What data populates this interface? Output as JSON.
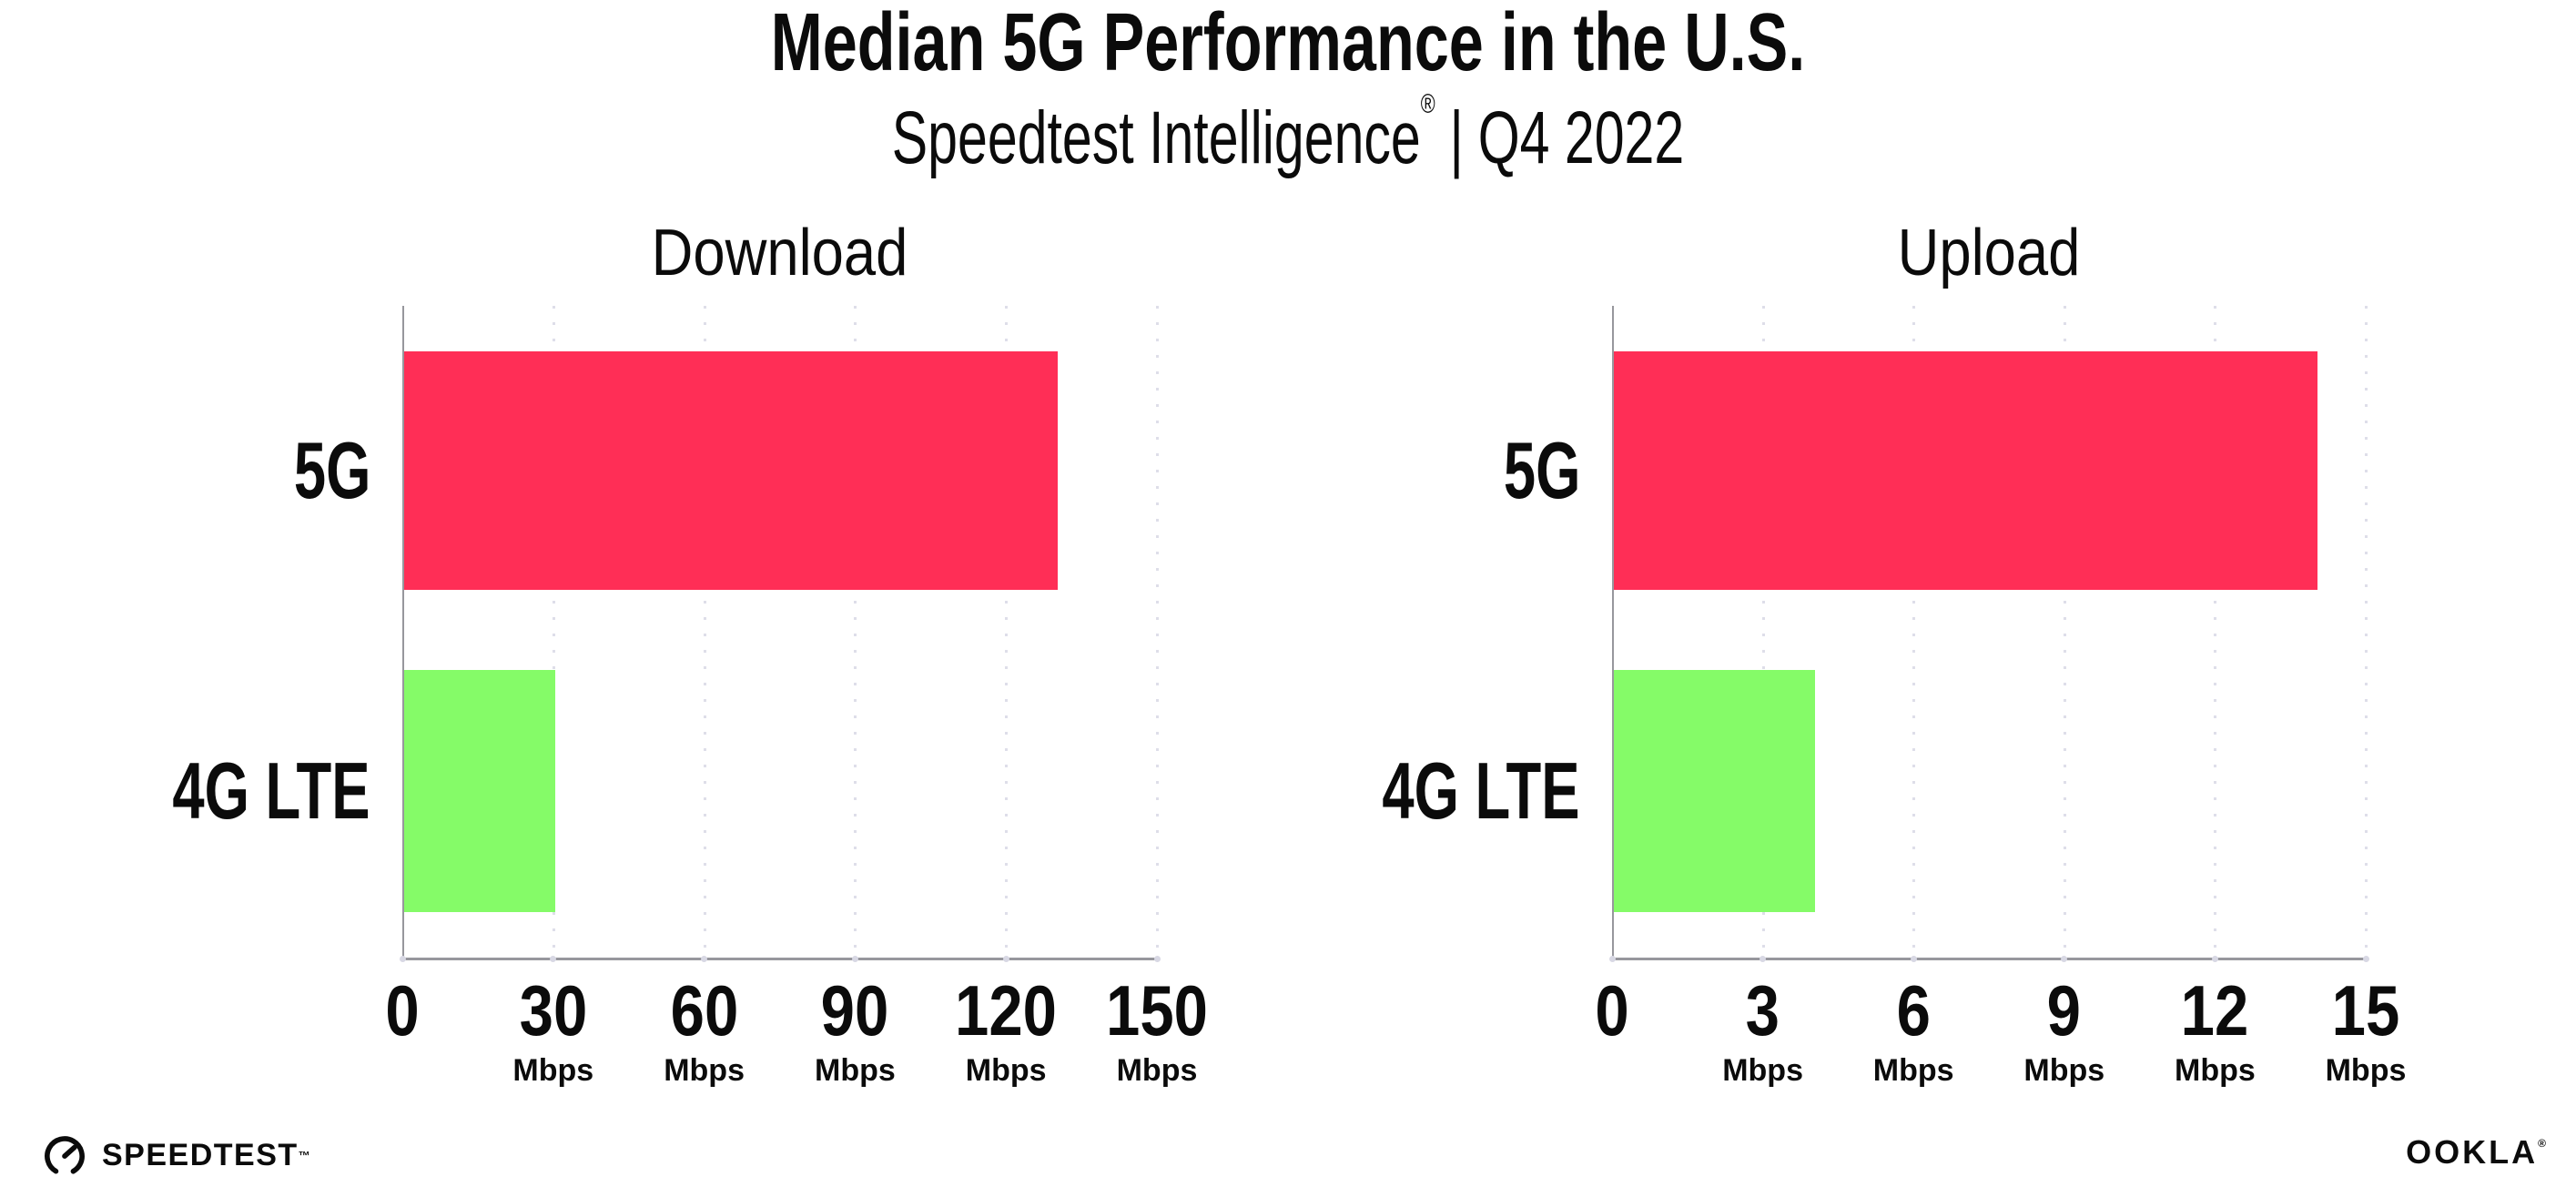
{
  "title": "Median 5G Performance in the U.S.",
  "subtitle": {
    "brand": "Speedtest Intelligence",
    "registered_mark": "®",
    "separator": "|",
    "period": "Q4 2022"
  },
  "footer": {
    "speedtest_wordmark": "SPEEDTEST",
    "speedtest_trademark": "™",
    "speedtest_icon": "gauge-icon",
    "ookla_wordmark": "OOKLA",
    "ookla_registered": "®"
  },
  "colors": {
    "bar_5g": "#ff2e56",
    "bar_4g_lte": "#85fb68",
    "axis": "#97979d",
    "grid_dot": "#dedee9",
    "text": "#0b0b0b"
  },
  "chart_data": [
    {
      "type": "bar",
      "orientation": "horizontal",
      "title": "Download",
      "categories": [
        "5G",
        "4G LTE"
      ],
      "values": [
        130,
        30
      ],
      "unit": "Mbps",
      "xlim": [
        0,
        150
      ],
      "ticks": [
        0,
        30,
        60,
        90,
        120,
        150
      ],
      "tick_unit": "Mbps",
      "grid": "dotted-vertical",
      "legend": "none",
      "bar_colors": [
        "#ff2e56",
        "#85fb68"
      ]
    },
    {
      "type": "bar",
      "orientation": "horizontal",
      "title": "Upload",
      "categories": [
        "5G",
        "4G LTE"
      ],
      "values": [
        14,
        4
      ],
      "unit": "Mbps",
      "xlim": [
        0,
        15
      ],
      "ticks": [
        0,
        3,
        6,
        9,
        12,
        15
      ],
      "tick_unit": "Mbps",
      "grid": "dotted-vertical",
      "legend": "none",
      "bar_colors": [
        "#ff2e56",
        "#85fb68"
      ]
    }
  ]
}
